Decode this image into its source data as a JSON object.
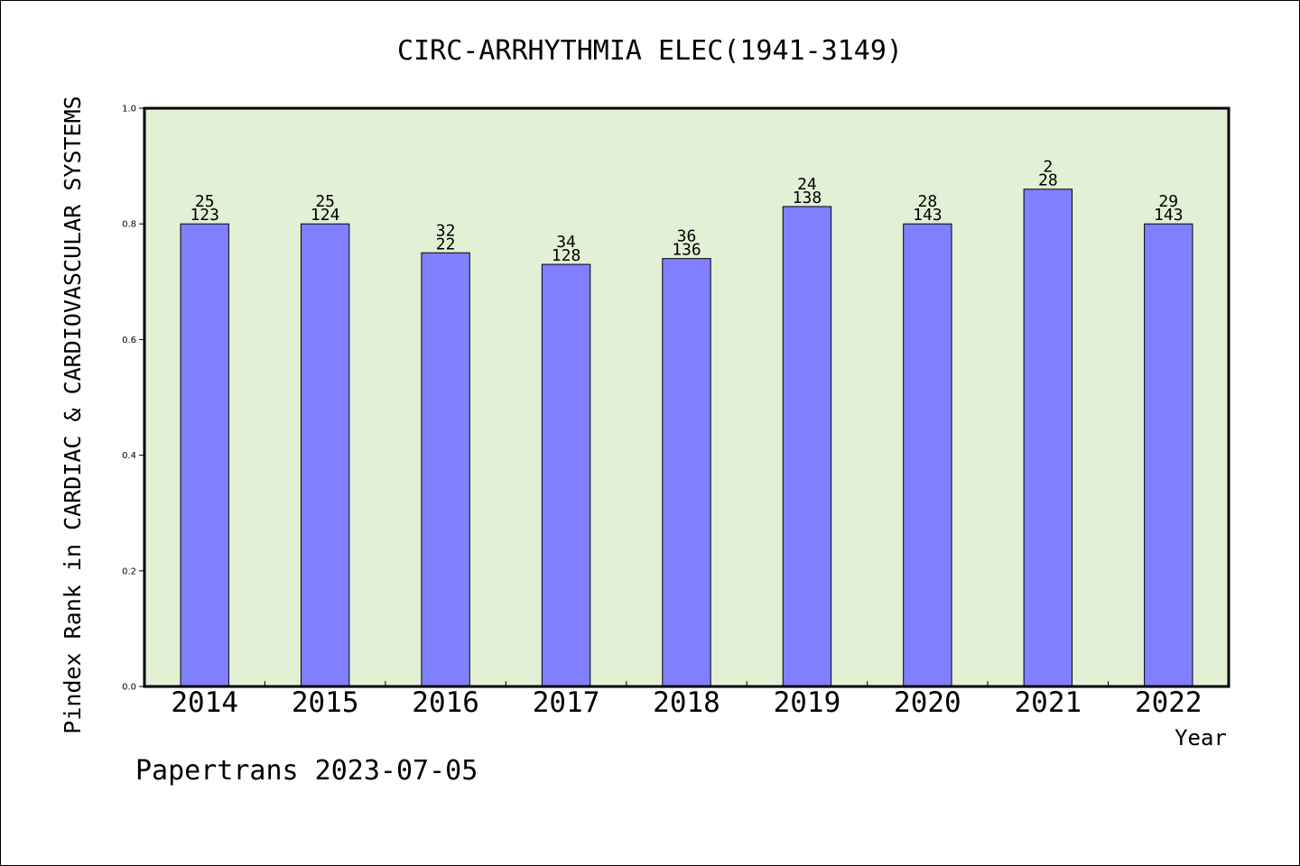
{
  "chart_data": {
    "type": "bar",
    "title": "CIRC-ARRHYTHMIA ELEC(1941-3149)",
    "xlabel": "Year",
    "ylabel": "Pindex Rank in CARDIAC & CARDIOVASCULAR SYSTEMS",
    "ylim": [
      0,
      1.0
    ],
    "yticks": [
      "0.0",
      "0.2",
      "0.4",
      "0.6",
      "0.8",
      "1.0"
    ],
    "categories": [
      "2014",
      "2015",
      "2016",
      "2017",
      "2018",
      "2019",
      "2020",
      "2021",
      "2022"
    ],
    "values": [
      0.8,
      0.8,
      0.75,
      0.73,
      0.74,
      0.83,
      0.8,
      0.86,
      0.8
    ],
    "labels_top": [
      "25",
      "25",
      "32",
      "34",
      "36",
      "24",
      "28",
      "2",
      "29"
    ],
    "labels_bottom": [
      "123",
      "124",
      "22",
      "128",
      "136",
      "138",
      "143",
      "28",
      "143"
    ],
    "grid": false,
    "legend": "none"
  },
  "footer": {
    "credit": "Papertrans 2023-07-05"
  },
  "colors": {
    "plot_background": "#e2f0d6",
    "bar_fill": "#8080ff",
    "bar_stroke": "#000000",
    "axis": "#000000",
    "text": "#000000"
  }
}
